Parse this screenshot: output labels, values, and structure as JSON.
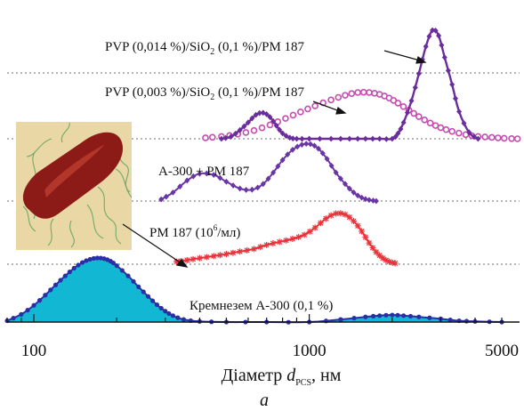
{
  "chart_data": {
    "type": "line",
    "title": "",
    "xlabel_main": "Діаметр ",
    "xlabel_var": "d",
    "xlabel_sub": "PCS",
    "xlabel_unit": ", нм",
    "panel_label": "а",
    "x_scale": "log",
    "xlim": [
      80,
      5800
    ],
    "x_ticks": [
      100,
      1000,
      5000
    ],
    "x_tick_labels": [
      "100",
      "1000",
      "5000"
    ],
    "series": [
      {
        "name": "Кремнезем А-300 (0,1 %)",
        "label_parts": [
          "Кремнезем А-300 (0,1 %)"
        ],
        "color": "#2b2fa6",
        "fill": "#12b8d3",
        "marker": "circle",
        "baseline": 0,
        "x": [
          80,
          90,
          100,
          110,
          120,
          130,
          140,
          150,
          160,
          170,
          180,
          190,
          200,
          220,
          240,
          260,
          280,
          300,
          320,
          350,
          400,
          500,
          700,
          1000,
          1300,
          1600,
          1800,
          2000,
          2200,
          2500,
          3000,
          3500,
          4000,
          5000
        ],
        "y": [
          0.02,
          0.12,
          0.26,
          0.42,
          0.58,
          0.72,
          0.84,
          0.93,
          0.98,
          1.0,
          0.99,
          0.95,
          0.88,
          0.72,
          0.55,
          0.4,
          0.27,
          0.17,
          0.1,
          0.04,
          0.01,
          0.0,
          0.0,
          0.0,
          0.04,
          0.08,
          0.1,
          0.11,
          0.1,
          0.08,
          0.05,
          0.02,
          0.01,
          0.0
        ]
      },
      {
        "name": "PM 187 (10⁶/мл)",
        "label_parts": [
          "PM 187 (10",
          "6",
          "/мл)"
        ],
        "color": "#e8333b",
        "marker": "star",
        "baseline": 1,
        "x": [
          330,
          360,
          400,
          450,
          500,
          560,
          630,
          700,
          780,
          870,
          960,
          1050,
          1150,
          1250,
          1350,
          1450,
          1550,
          1650,
          1750,
          1850,
          1950,
          2050
        ],
        "y": [
          0.05,
          0.08,
          0.12,
          0.16,
          0.2,
          0.25,
          0.3,
          0.38,
          0.44,
          0.5,
          0.58,
          0.72,
          0.9,
          1.0,
          0.98,
          0.85,
          0.65,
          0.42,
          0.24,
          0.12,
          0.05,
          0.02
        ]
      },
      {
        "name": "А-300 + РМ 187",
        "label_parts": [
          "А-300 + РМ 187"
        ],
        "color": "#6a35a6",
        "marker": "diamond",
        "baseline": 2,
        "x": [
          290,
          320,
          360,
          400,
          450,
          500,
          560,
          620,
          680,
          740,
          800,
          870,
          940,
          1010,
          1080,
          1160,
          1250,
          1350,
          1450,
          1550,
          1650,
          1750
        ],
        "y": [
          0.03,
          0.15,
          0.36,
          0.48,
          0.46,
          0.34,
          0.22,
          0.2,
          0.3,
          0.5,
          0.72,
          0.9,
          0.99,
          1.0,
          0.92,
          0.74,
          0.5,
          0.3,
          0.15,
          0.06,
          0.02,
          0.0
        ]
      },
      {
        "name": "PVP (0,003 %)/SiO₂ (0,1 %)/PM 187",
        "label_parts": [
          "PVP (0,003 %)/SiO",
          "2",
          " (0,1 %)/PM 187"
        ],
        "color": "#c64bb0",
        "marker": "circle-light",
        "baseline": 3,
        "x": [
          420,
          480,
          550,
          630,
          720,
          820,
          930,
          1050,
          1200,
          1350,
          1500,
          1650,
          1800,
          1950,
          2100,
          2300,
          2500,
          2750,
          3000,
          3300,
          3700,
          4100,
          4600,
          5100,
          5700
        ],
        "y": [
          0.02,
          0.05,
          0.1,
          0.18,
          0.3,
          0.44,
          0.58,
          0.71,
          0.84,
          0.94,
          1.0,
          1.0,
          0.96,
          0.88,
          0.77,
          0.62,
          0.48,
          0.34,
          0.24,
          0.16,
          0.09,
          0.05,
          0.03,
          0.01,
          0.0
        ]
      },
      {
        "name": "PVP (0,014 %)/SiO₂ (0,1 %)/PM 187",
        "label_parts": [
          "PVP (0,014 %)/SiO",
          "2",
          " (0,1 %)/PM 187"
        ],
        "color": "#6a2e9c",
        "marker": "diamond",
        "baseline": 3,
        "x": [
          480,
          520,
          560,
          600,
          640,
          680,
          720,
          760,
          800,
          850,
          900,
          1000,
          1200,
          1400,
          1600,
          1800,
          2000,
          2100,
          2200,
          2350,
          2500,
          2650,
          2800,
          2950,
          3100,
          3300,
          3500,
          3800,
          4100
        ],
        "y": [
          0.0,
          0.02,
          0.08,
          0.15,
          0.22,
          0.24,
          0.2,
          0.12,
          0.05,
          0.01,
          0.0,
          0.0,
          0.0,
          0.0,
          0.0,
          0.0,
          0.0,
          0.05,
          0.15,
          0.35,
          0.6,
          0.85,
          1.0,
          0.95,
          0.75,
          0.5,
          0.25,
          0.06,
          0.0
        ]
      }
    ]
  },
  "image": {
    "name": "bacterium-micrograph",
    "background": "#ead7a6",
    "body_color": "#8c1a16",
    "flagella_color": "#6faa6a"
  }
}
